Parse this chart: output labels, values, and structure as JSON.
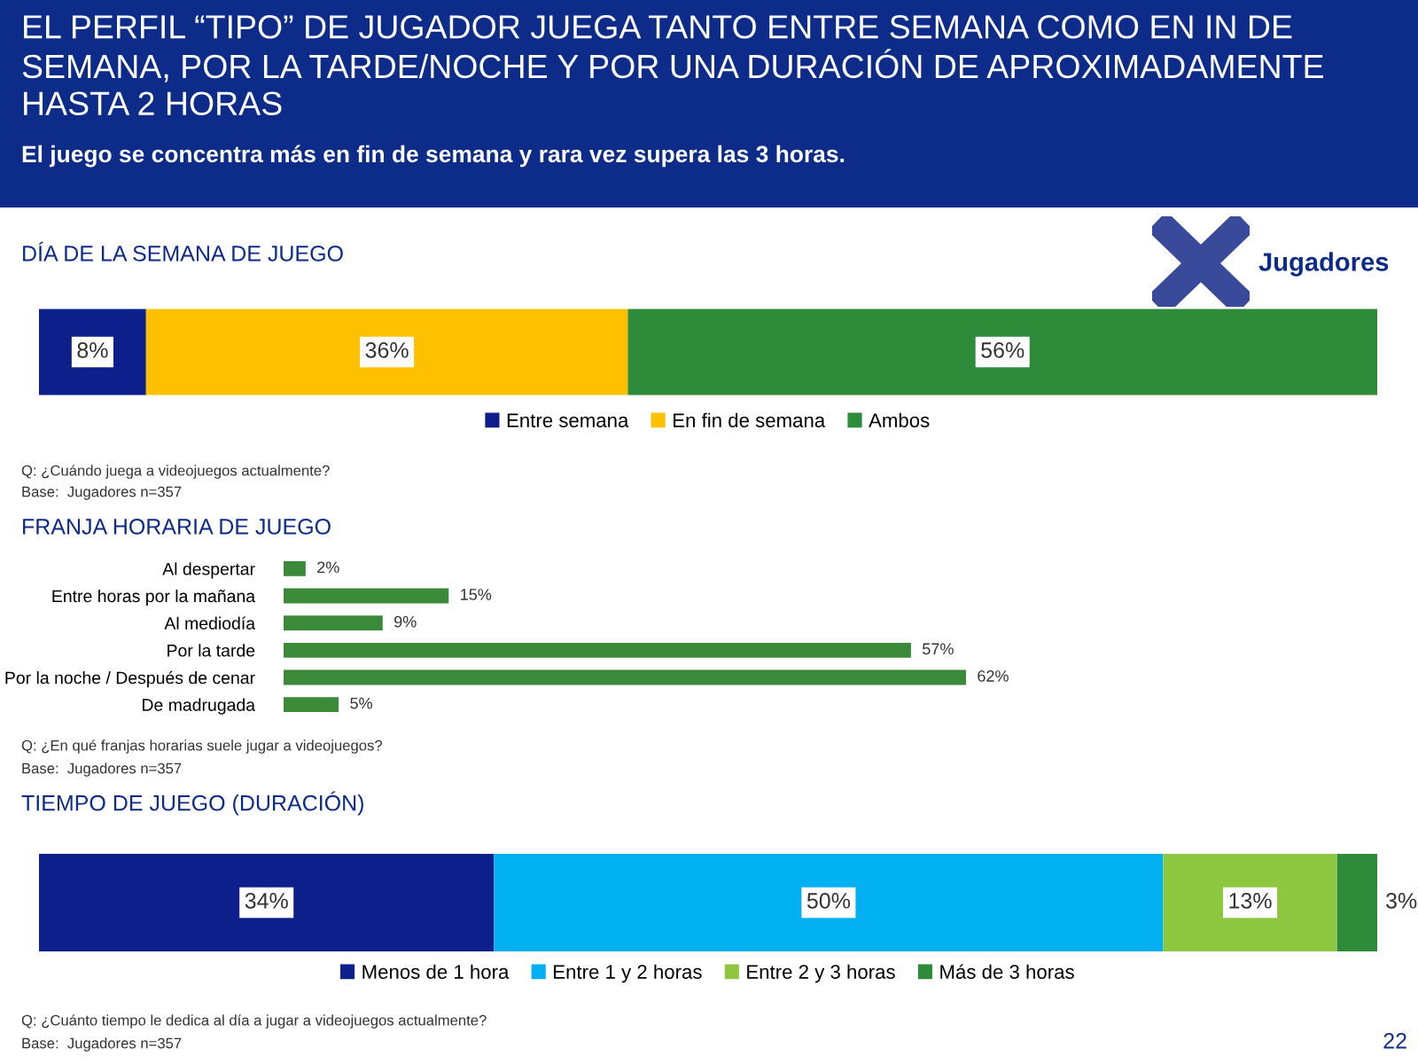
{
  "chart_data": [
    {
      "type": "other",
      "title": "EL PERFIL “TIPO” DE JUGADOR JUEGA TANTO ENTRE SEMANA COMO EN IN DE SEMANA, POR LA TARDE/NOCHE Y POR UNA DURACIÓN DE APROXIMADAMENTE HASTA 2 HORAS",
      "subtitle": "El juego se concentra más en fin de semana y rara vez supera las 3 horas.",
      "annotations": [
        "Jugadores",
        "22"
      ]
    },
    {
      "type": "bar",
      "orientation": "horizontal",
      "stacked": true,
      "title": "DÍA DE LA SEMANA DE JUEGO",
      "categories": [
        null
      ],
      "tick_labels": false,
      "legend": "bottom",
      "series": [
        {
          "name": "Entre semana",
          "color": "#0d1f8a",
          "values": [
            8
          ],
          "value_labels": [
            "8%"
          ]
        },
        {
          "name": "En fin de semana",
          "color": "#ffc000",
          "values": [
            36
          ],
          "value_labels": [
            "36%"
          ]
        },
        {
          "name": "Ambos",
          "color": "#2e8b3a",
          "values": [
            56
          ],
          "value_labels": [
            "56%"
          ]
        }
      ],
      "annotations": [
        "Q: ¿Cuándo juega a videojuegos actualmente?",
        "Base:  Jugadores n=357"
      ]
    },
    {
      "type": "bar",
      "orientation": "horizontal",
      "title": "FRANJA HORARIA DE JUEGO",
      "categories": [
        "Al despertar",
        "Entre horas por la mañana",
        "Al mediodía",
        "Por la tarde",
        "Por la noche / Después de cenar",
        "De madrugada"
      ],
      "tick_labels": "y",
      "series": [
        {
          "color": "#3a8a3a",
          "values": [
            2,
            15,
            9,
            57,
            62,
            5
          ],
          "value_labels": [
            "2%",
            "15%",
            "9%",
            "57%",
            "62%",
            "5%"
          ]
        }
      ],
      "annotations": [
        "Q: ¿En qué franjas horarias suele jugar a videojuegos?",
        "Base:  Jugadores n=357"
      ]
    },
    {
      "type": "bar",
      "orientation": "horizontal",
      "stacked": true,
      "title": "TIEMPO DE JUEGO (DURACIÓN)",
      "categories": [
        null
      ],
      "tick_labels": false,
      "legend": "bottom",
      "series": [
        {
          "name": "Menos de 1 hora",
          "color": "#0d1f8a",
          "values": [
            34
          ],
          "value_labels": [
            "34%"
          ]
        },
        {
          "name": "Entre 1 y 2 horas",
          "color": "#00b0f0",
          "values": [
            50
          ],
          "value_labels": [
            "50%"
          ]
        },
        {
          "name": "Entre 2 y 3 horas",
          "color": "#8dc63f",
          "values": [
            13
          ],
          "value_labels": [
            "13%"
          ]
        },
        {
          "name": "Más de 3 horas",
          "color": "#2e8b3a",
          "values": [
            3
          ],
          "value_labels": [
            "3%"
          ]
        }
      ],
      "annotations": [
        "Q: ¿Cuánto tiempo le dedica al día a jugar a videojuegos actualmente?",
        "Base:  Jugadores n=357"
      ]
    }
  ]
}
